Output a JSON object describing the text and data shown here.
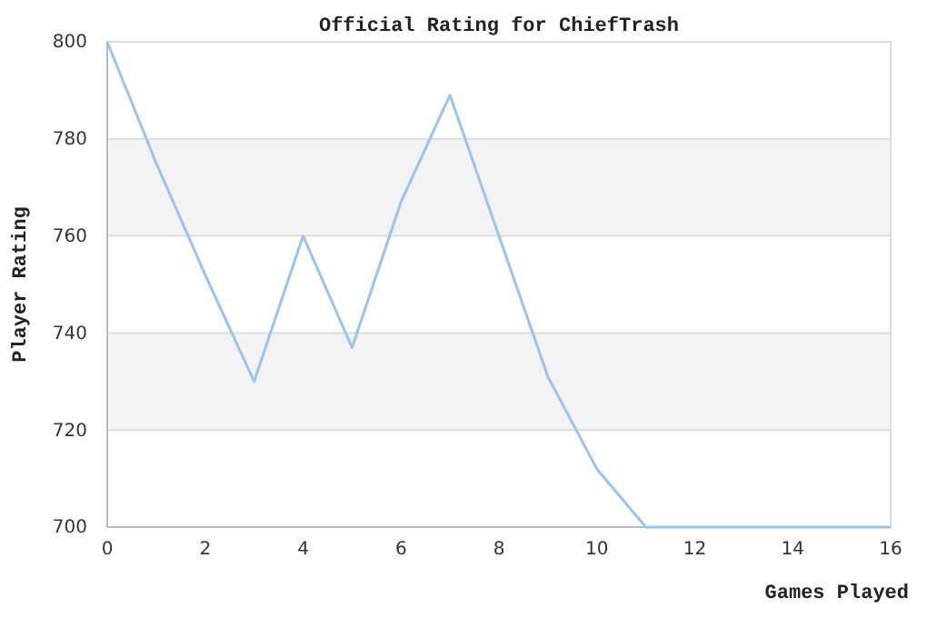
{
  "chart_data": {
    "type": "line",
    "title": "Official Rating for ChiefTrash",
    "xlabel": "Games Played",
    "ylabel": "Player Rating",
    "x": [
      0,
      1,
      2,
      3,
      4,
      5,
      6,
      7,
      8,
      9,
      10,
      11,
      12,
      13,
      14,
      15,
      16
    ],
    "series": [
      {
        "color": "#99c4f0",
        "values": [
          800,
          775,
          752,
          730,
          760,
          737,
          767,
          789,
          760,
          731,
          712,
          700,
          700,
          700,
          700,
          700,
          700
        ]
      }
    ],
    "xlim": [
      0,
      16
    ],
    "xticks": [
      0,
      2,
      4,
      6,
      8,
      10,
      12,
      14,
      16
    ],
    "ylim": [
      700,
      800
    ],
    "yticks": [
      700,
      720,
      740,
      760,
      780,
      800
    ],
    "grid": "y"
  }
}
